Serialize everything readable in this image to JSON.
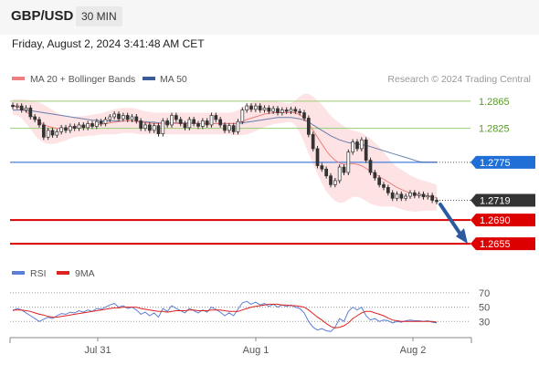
{
  "header": {
    "pair": "GBP/USD",
    "timeframe": "30 MIN"
  },
  "date_text": "Friday, August 2, 2024 3:41:48 AM CET",
  "credit": "Research © 2024 Trading Central",
  "colors": {
    "ma20": "#f08080",
    "ma50": "#3a5a9a",
    "bands": "#fde3e3",
    "support": "#dd0000",
    "pivot": "#4a7fe0",
    "resistance_line": "#9acd73",
    "rsi": "#5b7fd6",
    "rsi_ma": "#dd2222",
    "arrow": "#2c5aa0",
    "up": "#ffffff",
    "down": "#333333"
  },
  "chart_data": [
    {
      "type": "candlestick",
      "title": "",
      "legend": [
        {
          "name": "MA 20 + Bollinger Bands",
          "color": "#f08080"
        },
        {
          "name": "MA 50",
          "color": "#3a5a9a"
        }
      ],
      "legend_placement": "top-left",
      "x_ticks": [
        "Jul 31",
        "Aug 1",
        "Aug 2"
      ],
      "ylim": [
        1.2635,
        1.2885
      ],
      "levels": [
        {
          "value": 1.2865,
          "label": "1.2865",
          "kind": "resistance"
        },
        {
          "value": 1.2825,
          "label": "1.2825",
          "kind": "resistance"
        },
        {
          "value": 1.2775,
          "label": "1.2775",
          "kind": "pivot"
        },
        {
          "value": 1.2719,
          "label": "1.2719",
          "kind": "last"
        },
        {
          "value": 1.269,
          "label": "1.2690",
          "kind": "support"
        },
        {
          "value": 1.2655,
          "label": "1.2655",
          "kind": "support"
        }
      ],
      "close": [
        1.2857,
        1.2858,
        1.2852,
        1.2855,
        1.2842,
        1.2838,
        1.283,
        1.2812,
        1.2822,
        1.2815,
        1.282,
        1.2826,
        1.2822,
        1.2828,
        1.2825,
        1.283,
        1.2826,
        1.2832,
        1.2828,
        1.2835,
        1.2832,
        1.2838,
        1.2842,
        1.2846,
        1.2839,
        1.2844,
        1.2838,
        1.2842,
        1.2836,
        1.2825,
        1.283,
        1.2822,
        1.2829,
        1.2817,
        1.2836,
        1.283,
        1.2844,
        1.2838,
        1.2832,
        1.2826,
        1.2838,
        1.2832,
        1.2828,
        1.2836,
        1.283,
        1.2844,
        1.2838,
        1.283,
        1.2822,
        1.2829,
        1.282,
        1.2835,
        1.2852,
        1.2858,
        1.2853,
        1.2858,
        1.2852,
        1.2855,
        1.285,
        1.2854,
        1.2848,
        1.2852,
        1.285,
        1.2853,
        1.285,
        1.2848,
        1.284,
        1.2816,
        1.2795,
        1.277,
        1.2765,
        1.2755,
        1.2742,
        1.2748,
        1.2768,
        1.276,
        1.279,
        1.2805,
        1.2795,
        1.2808,
        1.2778,
        1.276,
        1.2752,
        1.2742,
        1.2738,
        1.273,
        1.2722,
        1.2728,
        1.2722,
        1.2725,
        1.273,
        1.2726,
        1.2728,
        1.2724,
        1.2726,
        1.2719,
        1.2717
      ],
      "ma20": [
        1.2858,
        1.2857,
        1.2855,
        1.285,
        1.2845,
        1.284,
        1.2835,
        1.283,
        1.2828,
        1.2826,
        1.2825,
        1.2825,
        1.2825,
        1.2826,
        1.2827,
        1.2828,
        1.2828,
        1.2829,
        1.2829,
        1.283,
        1.2831,
        1.2832,
        1.2833,
        1.2834,
        1.2835,
        1.2836,
        1.2836,
        1.2836,
        1.2835,
        1.2834,
        1.2833,
        1.2833,
        1.2832,
        1.2832,
        1.2832,
        1.2832,
        1.2832,
        1.2832,
        1.2832,
        1.2832,
        1.2832,
        1.2832,
        1.2832,
        1.2832,
        1.2832,
        1.2832,
        1.2832,
        1.2832,
        1.2832,
        1.2832,
        1.2832,
        1.2833,
        1.2835,
        1.2838,
        1.284,
        1.2842,
        1.2844,
        1.2846,
        1.2847,
        1.2848,
        1.2848,
        1.2848,
        1.2848,
        1.2848,
        1.2848,
        1.2845,
        1.284,
        1.2832,
        1.2822,
        1.2812,
        1.2802,
        1.2792,
        1.2784,
        1.2778,
        1.2774,
        1.2772,
        1.2772,
        1.2773,
        1.2772,
        1.277,
        1.2766,
        1.2762,
        1.2758,
        1.2754,
        1.275,
        1.2746,
        1.2742,
        1.2738,
        1.2735,
        1.2732,
        1.273,
        1.2728,
        1.2727,
        1.2726,
        1.2725,
        1.2724,
        1.2723
      ],
      "upper": [
        1.2868,
        1.2868,
        1.2868,
        1.2867,
        1.2866,
        1.2865,
        1.2863,
        1.286,
        1.2856,
        1.2852,
        1.2848,
        1.2845,
        1.2843,
        1.2842,
        1.2842,
        1.2843,
        1.2843,
        1.2844,
        1.2845,
        1.2846,
        1.2847,
        1.2849,
        1.2851,
        1.2853,
        1.2854,
        1.2855,
        1.2855,
        1.2855,
        1.2854,
        1.2852,
        1.285,
        1.2849,
        1.2848,
        1.2848,
        1.2848,
        1.2848,
        1.2848,
        1.2848,
        1.2848,
        1.2848,
        1.2848,
        1.2848,
        1.2848,
        1.2848,
        1.2848,
        1.2848,
        1.2848,
        1.2848,
        1.2848,
        1.2848,
        1.2849,
        1.2852,
        1.2856,
        1.286,
        1.2863,
        1.2865,
        1.2866,
        1.2866,
        1.2866,
        1.2865,
        1.2864,
        1.2863,
        1.2862,
        1.2862,
        1.2866,
        1.2872,
        1.2876,
        1.2876,
        1.2872,
        1.2866,
        1.286,
        1.2852,
        1.2844,
        1.2838,
        1.2833,
        1.2828,
        1.2824,
        1.2822,
        1.282,
        1.2818,
        1.2814,
        1.281,
        1.2804,
        1.2798,
        1.279,
        1.2782,
        1.2774,
        1.2768,
        1.2764,
        1.276,
        1.2756,
        1.2753,
        1.275,
        1.2748,
        1.2746,
        1.2744,
        1.2742
      ],
      "lower": [
        1.2845,
        1.2844,
        1.284,
        1.2832,
        1.2824,
        1.2815,
        1.2808,
        1.2804,
        1.2802,
        1.2802,
        1.2803,
        1.2805,
        1.2807,
        1.281,
        1.2812,
        1.2813,
        1.2813,
        1.2814,
        1.2814,
        1.2815,
        1.2816,
        1.2816,
        1.2816,
        1.2816,
        1.2817,
        1.2818,
        1.2818,
        1.2818,
        1.2817,
        1.2816,
        1.2816,
        1.2816,
        1.2816,
        1.2816,
        1.2816,
        1.2816,
        1.2816,
        1.2816,
        1.2816,
        1.2816,
        1.2816,
        1.2816,
        1.2816,
        1.2816,
        1.2816,
        1.2816,
        1.2816,
        1.2816,
        1.2816,
        1.2816,
        1.2815,
        1.2815,
        1.2815,
        1.2816,
        1.2818,
        1.2821,
        1.2824,
        1.2827,
        1.2829,
        1.2831,
        1.2832,
        1.2833,
        1.2834,
        1.2834,
        1.283,
        1.2818,
        1.2804,
        1.2788,
        1.2772,
        1.2758,
        1.2744,
        1.2732,
        1.2724,
        1.2718,
        1.2715,
        1.2716,
        1.272,
        1.2724,
        1.2724,
        1.2722,
        1.2718,
        1.2714,
        1.2712,
        1.271,
        1.271,
        1.271,
        1.271,
        1.2708,
        1.2706,
        1.2704,
        1.2703,
        1.2702,
        1.2703,
        1.2704,
        1.2704,
        1.2704,
        1.2704
      ],
      "ma50": [
        1.2852,
        1.2852,
        1.2852,
        1.2851,
        1.2851,
        1.285,
        1.2849,
        1.2848,
        1.2847,
        1.2846,
        1.2845,
        1.2844,
        1.2843,
        1.2842,
        1.2841,
        1.284,
        1.2839,
        1.2838,
        1.2837,
        1.2837,
        1.2836,
        1.2836,
        1.2836,
        1.2836,
        1.2836,
        1.2836,
        1.2836,
        1.2836,
        1.2835,
        1.2835,
        1.2835,
        1.2834,
        1.2834,
        1.2833,
        1.2833,
        1.2833,
        1.2833,
        1.2833,
        1.2833,
        1.2833,
        1.2833,
        1.2833,
        1.2832,
        1.2832,
        1.2832,
        1.2832,
        1.2832,
        1.2832,
        1.2832,
        1.2832,
        1.2832,
        1.2832,
        1.2833,
        1.2834,
        1.2835,
        1.2836,
        1.2837,
        1.2838,
        1.2839,
        1.284,
        1.2841,
        1.2841,
        1.2841,
        1.2841,
        1.284,
        1.2839,
        1.2837,
        1.2834,
        1.283,
        1.2826,
        1.2822,
        1.2818,
        1.2814,
        1.2811,
        1.2808,
        1.2806,
        1.2804,
        1.2803,
        1.2802,
        1.2801,
        1.28,
        1.2798,
        1.2796,
        1.2794,
        1.2792,
        1.279,
        1.2788,
        1.2786,
        1.2784,
        1.2782,
        1.278,
        1.2778,
        1.2776,
        1.2775,
        1.2775,
        1.2775,
        1.2775
      ]
    },
    {
      "type": "line",
      "title": "",
      "legend": [
        {
          "name": "RSI",
          "color": "#5b7fd6"
        },
        {
          "name": "9MA",
          "color": "#dd2222"
        }
      ],
      "ylim": [
        10,
        80
      ],
      "y_ticks": [
        70,
        50,
        30
      ],
      "rsi": [
        45,
        48,
        46,
        42,
        38,
        34,
        30,
        33,
        36,
        34,
        38,
        41,
        40,
        43,
        42,
        45,
        43,
        46,
        44,
        48,
        47,
        50,
        53,
        55,
        50,
        52,
        48,
        50,
        46,
        40,
        43,
        38,
        42,
        36,
        48,
        44,
        52,
        48,
        45,
        42,
        48,
        45,
        42,
        46,
        43,
        50,
        47,
        43,
        38,
        42,
        38,
        47,
        56,
        58,
        54,
        57,
        53,
        55,
        51,
        54,
        50,
        53,
        51,
        53,
        50,
        48,
        42,
        30,
        22,
        18,
        20,
        17,
        16,
        22,
        34,
        30,
        44,
        50,
        46,
        50,
        38,
        32,
        34,
        30,
        32,
        31,
        28,
        30,
        29,
        31,
        32,
        31,
        31,
        30,
        31,
        29,
        28
      ],
      "rsi_ma": [
        46,
        46,
        46,
        45,
        44,
        42,
        40,
        39,
        37,
        36,
        36,
        37,
        38,
        39,
        40,
        41,
        42,
        43,
        44,
        45,
        46,
        47,
        48,
        49,
        49,
        50,
        50,
        50,
        50,
        48,
        47,
        46,
        45,
        44,
        44,
        43,
        44,
        45,
        45,
        45,
        46,
        46,
        45,
        45,
        45,
        46,
        46,
        46,
        45,
        44,
        44,
        44,
        46,
        48,
        50,
        51,
        52,
        53,
        54,
        54,
        54,
        53,
        53,
        52,
        52,
        51,
        50,
        46,
        41,
        36,
        32,
        27,
        23,
        21,
        22,
        24,
        28,
        34,
        38,
        42,
        44,
        44,
        42,
        40,
        38,
        35,
        32,
        31,
        30,
        30,
        30,
        30,
        30,
        30,
        30,
        30,
        29
      ]
    }
  ]
}
